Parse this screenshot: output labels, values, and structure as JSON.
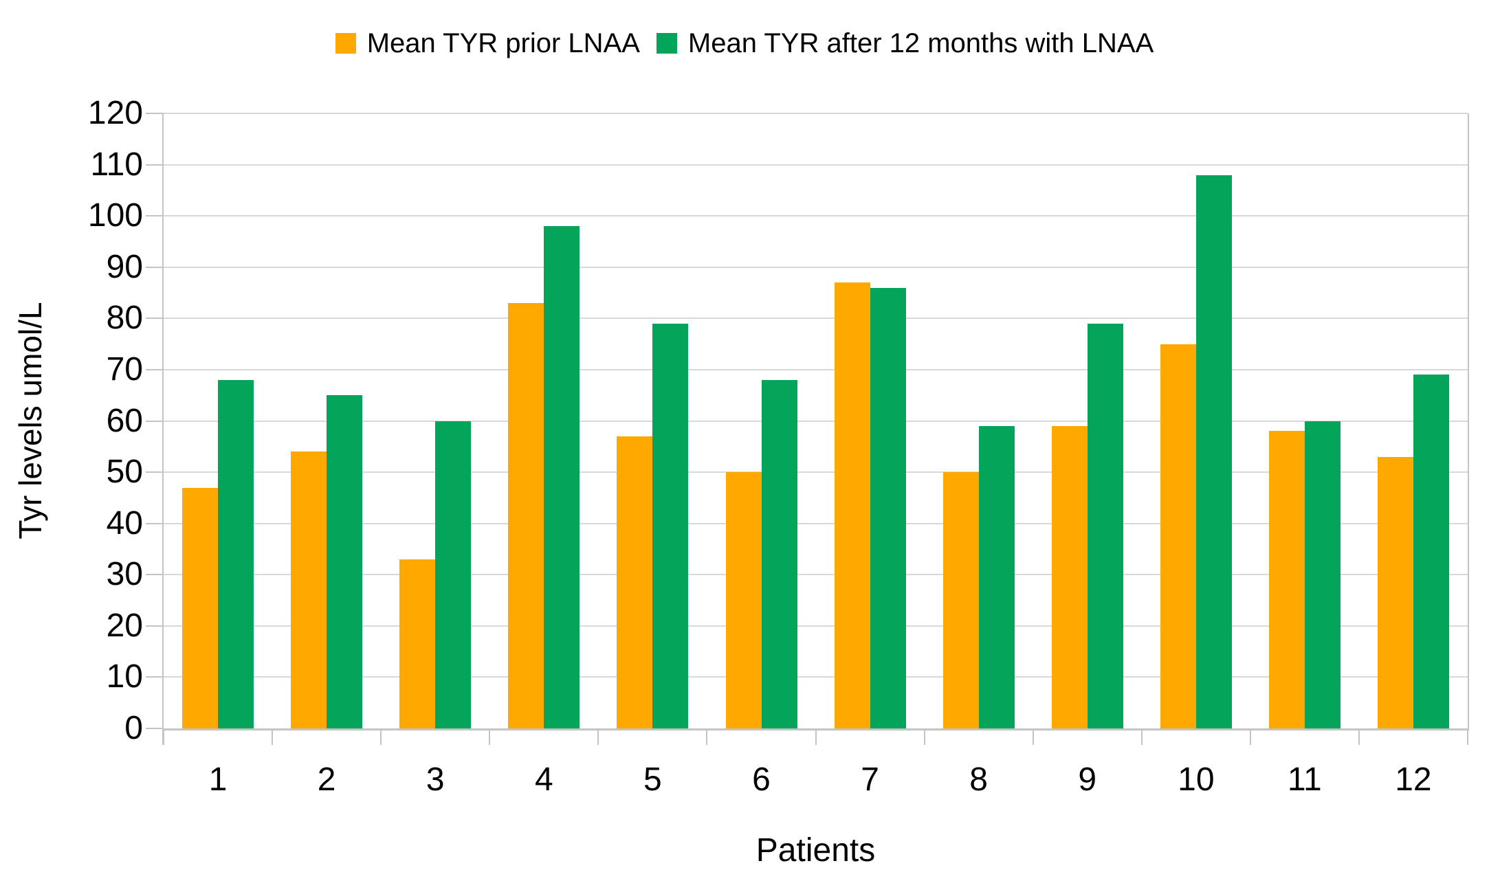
{
  "legend": {
    "items": [
      {
        "label": "Mean TYR prior LNAA"
      },
      {
        "label": "Mean TYR after 12 months with LNAA"
      }
    ]
  },
  "y_axis": {
    "title": "Tyr levels umol/L",
    "tick_labels": [
      "0",
      "10",
      "20",
      "30",
      "40",
      "50",
      "60",
      "70",
      "80",
      "90",
      "100",
      "110",
      "120"
    ]
  },
  "x_axis": {
    "title": "Patients",
    "tick_labels": [
      "1",
      "2",
      "3",
      "4",
      "5",
      "6",
      "7",
      "8",
      "9",
      "10",
      "11",
      "12"
    ]
  },
  "colors": {
    "prior_orange": "#FFA900",
    "after_green": "#04A45A",
    "gridline": "#D9D9D9",
    "axis": "#C4C4C4",
    "text": "#000000",
    "background": "#FFFFFF"
  },
  "chart_data": {
    "type": "bar",
    "title": "",
    "xlabel": "Patients",
    "ylabel": "Tyr levels umol/L",
    "ylim": [
      0,
      120
    ],
    "ytick_step": 10,
    "grid": true,
    "legend_position": "top-center",
    "categories": [
      "1",
      "2",
      "3",
      "4",
      "5",
      "6",
      "7",
      "8",
      "9",
      "10",
      "11",
      "12"
    ],
    "series": [
      {
        "name": "Mean TYR prior LNAA",
        "color": "#FFA900",
        "values": [
          47,
          54,
          33,
          83,
          57,
          50,
          87,
          50,
          59,
          75,
          58,
          53
        ]
      },
      {
        "name": "Mean TYR after 12 months with LNAA",
        "color": "#04A45A",
        "values": [
          68,
          65,
          60,
          98,
          79,
          68,
          86,
          59,
          79,
          108,
          60,
          69
        ]
      }
    ]
  }
}
